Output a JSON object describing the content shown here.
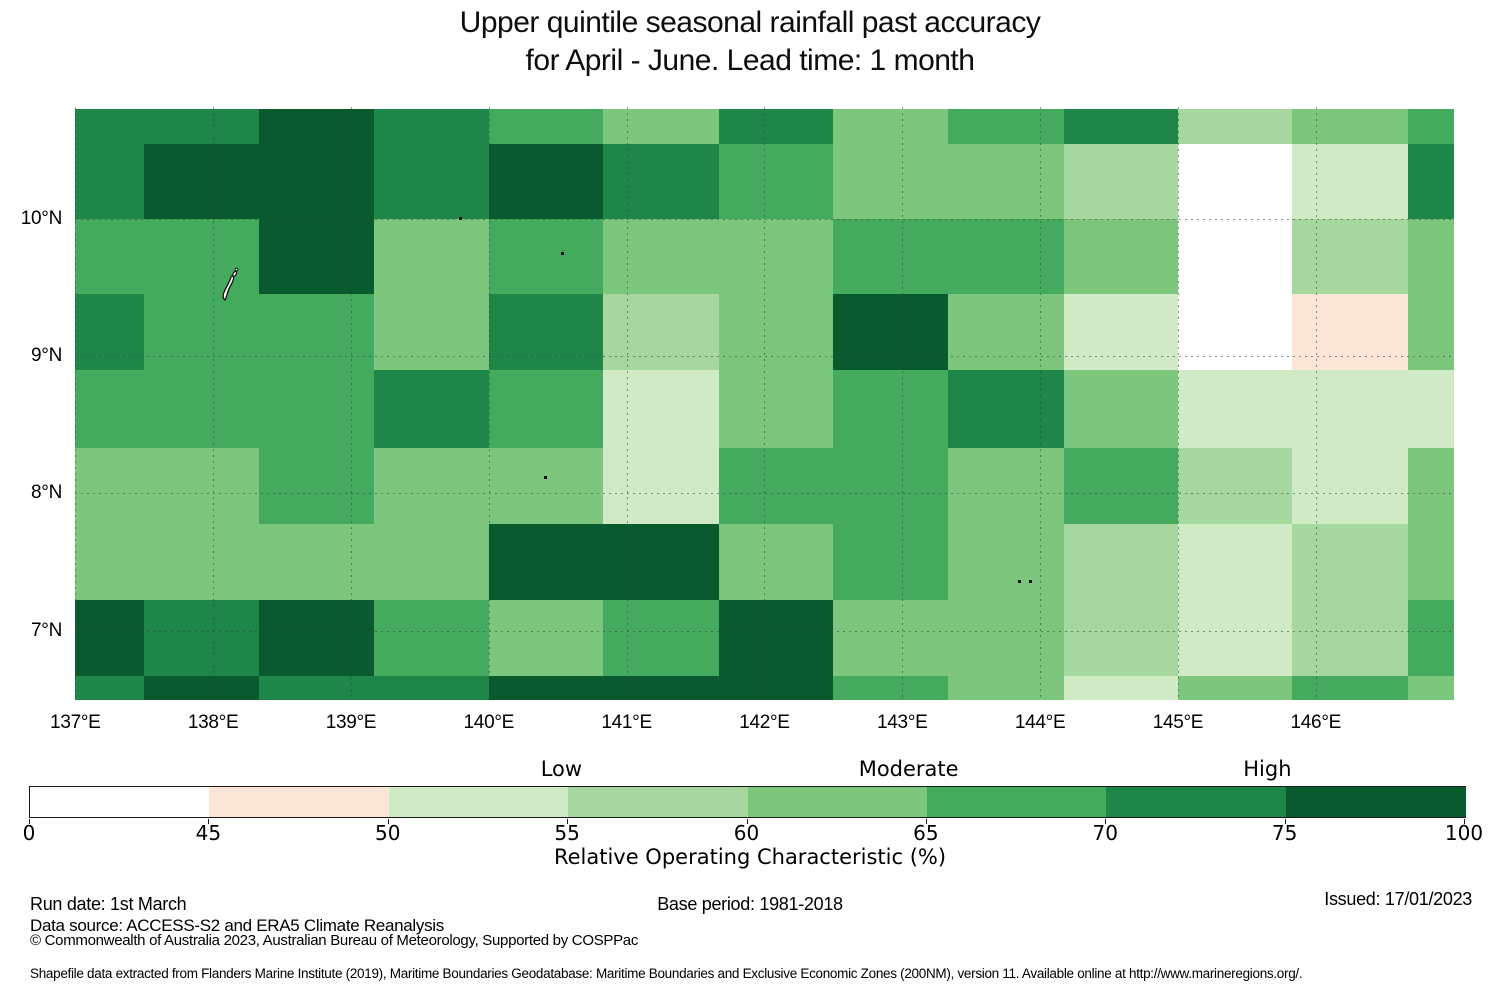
{
  "title": {
    "line1": "Upper quintile seasonal rainfall past accuracy",
    "line2": "for April - June. Lead time: 1 month"
  },
  "chart_data": {
    "type": "heatmap",
    "title": "Upper quintile seasonal rainfall past accuracy for April - June. Lead time: 1 month",
    "value_name": "Relative Operating Characteristic (%)",
    "grid_on": true,
    "lon_edges_deg": [
      137.0,
      137.5,
      138.33,
      139.17,
      140.0,
      140.83,
      141.67,
      142.5,
      143.33,
      144.17,
      145.0,
      145.83,
      146.67,
      147.0
    ],
    "lat_edges_deg": [
      10.8,
      10.55,
      10.0,
      9.45,
      8.9,
      8.33,
      7.78,
      7.22,
      6.67,
      6.5
    ],
    "grid_roc_percent": [
      [
        72,
        72,
        85,
        72,
        67,
        62,
        72,
        62,
        67,
        72,
        57,
        62,
        67
      ],
      [
        72,
        85,
        85,
        72,
        85,
        72,
        67,
        62,
        62,
        57,
        40,
        52,
        72
      ],
      [
        67,
        67,
        85,
        62,
        67,
        62,
        62,
        67,
        67,
        62,
        40,
        57,
        62
      ],
      [
        72,
        67,
        67,
        62,
        72,
        57,
        62,
        85,
        62,
        52,
        40,
        47,
        62
      ],
      [
        67,
        67,
        67,
        72,
        67,
        52,
        62,
        67,
        72,
        62,
        52,
        52,
        52
      ],
      [
        62,
        62,
        67,
        62,
        62,
        52,
        67,
        67,
        62,
        67,
        57,
        52,
        62
      ],
      [
        62,
        62,
        62,
        62,
        85,
        85,
        62,
        67,
        62,
        57,
        52,
        57,
        62
      ],
      [
        85,
        72,
        85,
        67,
        62,
        67,
        85,
        62,
        62,
        57,
        52,
        57,
        67
      ],
      [
        72,
        85,
        72,
        72,
        85,
        85,
        85,
        67,
        62,
        52,
        62,
        67,
        62
      ]
    ],
    "x_ticks": [
      {
        "label": "137°E",
        "lon": 137
      },
      {
        "label": "138°E",
        "lon": 138
      },
      {
        "label": "139°E",
        "lon": 139
      },
      {
        "label": "140°E",
        "lon": 140
      },
      {
        "label": "141°E",
        "lon": 141
      },
      {
        "label": "142°E",
        "lon": 142
      },
      {
        "label": "143°E",
        "lon": 143
      },
      {
        "label": "144°E",
        "lon": 144
      },
      {
        "label": "145°E",
        "lon": 145
      },
      {
        "label": "146°E",
        "lon": 146
      }
    ],
    "y_ticks": [
      {
        "label": "10°N",
        "lat": 10
      },
      {
        "label": "9°N",
        "lat": 9
      },
      {
        "label": "8°N",
        "lat": 8
      },
      {
        "label": "7°N",
        "lat": 7
      }
    ],
    "islands": [
      {
        "name": "yap-island",
        "lon": 138.12,
        "lat": 9.52,
        "type": "outline"
      },
      {
        "name": "islet",
        "lon": 139.79,
        "lat": 10.01,
        "type": "dot"
      },
      {
        "name": "islet",
        "lon": 140.53,
        "lat": 9.75,
        "type": "dot"
      },
      {
        "name": "islet",
        "lon": 140.41,
        "lat": 8.12,
        "type": "dot"
      },
      {
        "name": "islet",
        "lon": 143.85,
        "lat": 7.36,
        "type": "dot"
      },
      {
        "name": "islet",
        "lon": 143.93,
        "lat": 7.36,
        "type": "dot"
      }
    ],
    "colorbar": {
      "title": "Relative Operating Characteristic (%)",
      "categories": [
        "Low",
        "Moderate",
        "High"
      ],
      "tick_labels": [
        "0",
        "45",
        "50",
        "55",
        "60",
        "65",
        "70",
        "75",
        "100"
      ],
      "bins": [
        {
          "from": 0,
          "to": 45,
          "color": "#ffffff"
        },
        {
          "from": 45,
          "to": 50,
          "color": "#fbe5d6"
        },
        {
          "from": 50,
          "to": 55,
          "color": "#cfeac5"
        },
        {
          "from": 55,
          "to": 60,
          "color": "#a6d79f"
        },
        {
          "from": 60,
          "to": 65,
          "color": "#7cc77d"
        },
        {
          "from": 65,
          "to": 70,
          "color": "#44aa5e"
        },
        {
          "from": 70,
          "to": 75,
          "color": "#1f8649"
        },
        {
          "from": 75,
          "to": 100,
          "color": "#0a5a30"
        }
      ]
    }
  },
  "footer": {
    "run_date": "Run date: 1st March",
    "base_period": "Base period: 1981-2018",
    "issued": "Issued: 17/01/2023",
    "data_source": "Data source: ACCESS-S2 and ERA5 Climate Reanalysis",
    "copyright": "© Commonwealth of Australia 2023, Australian Bureau of Meteorology, Supported by COSPPac",
    "shapefile_note": "Shapefile data extracted from Flanders Marine Institute (2019), Maritime Boundaries Geodatabase: Maritime Boundaries and Exclusive Economic Zones (200NM), version 11. Available online at http://www.marineregions.org/."
  }
}
